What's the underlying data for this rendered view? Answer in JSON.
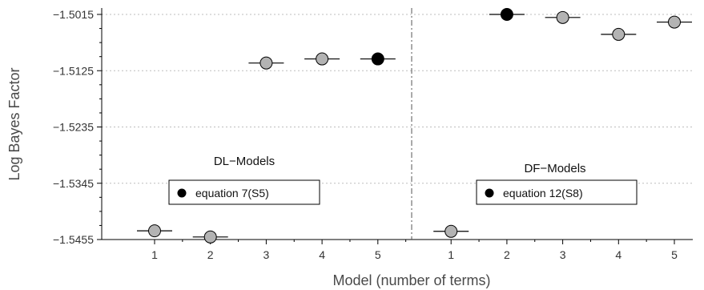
{
  "chart_data": {
    "type": "scatter",
    "xlabel": "Model (number of terms)",
    "ylabel": "Log Bayes Factor",
    "ylim": [
      -1.5455,
      -1.5015
    ],
    "yticks": [
      "-1.5015",
      "-1.5125",
      "-1.5235",
      "-1.5345",
      "-1.5455"
    ],
    "grid": "horizontal dotted",
    "panels": [
      {
        "title": "DL−Models",
        "legend": "equation 7(S5)",
        "categories": [
          "1",
          "2",
          "3",
          "4",
          "5"
        ],
        "values": [
          -1.5438,
          -1.545,
          -1.511,
          -1.5102,
          -1.5102
        ],
        "highlight_index": 4
      },
      {
        "title": "DF−Models",
        "legend": "equation 12(S8)",
        "categories": [
          "1",
          "2",
          "3",
          "4",
          "5"
        ],
        "values": [
          -1.5439,
          -1.5015,
          -1.5021,
          -1.5054,
          -1.503
        ],
        "highlight_index": 1
      }
    ],
    "colors": {
      "marker": "#b3b3b3",
      "highlight": "#000000",
      "grid": "#bdbdbd"
    }
  }
}
